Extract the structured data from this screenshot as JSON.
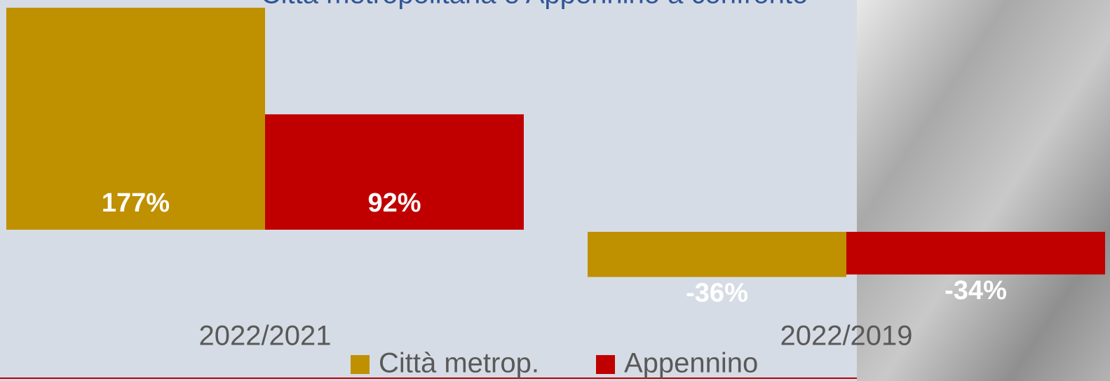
{
  "chart_data": {
    "type": "bar",
    "title": "Città metropolitana e Appennino a confronto",
    "categories": [
      "2022/2021",
      "2022/2019"
    ],
    "series": [
      {
        "name": "Città metrop.",
        "color": "#BF9000",
        "values": [
          177,
          -36
        ],
        "value_labels": [
          "177%",
          "-36%"
        ]
      },
      {
        "name": "Appennino",
        "color": "#C00000",
        "values": [
          92,
          -34
        ],
        "value_labels": [
          "92%",
          "-34%"
        ]
      }
    ]
  }
}
